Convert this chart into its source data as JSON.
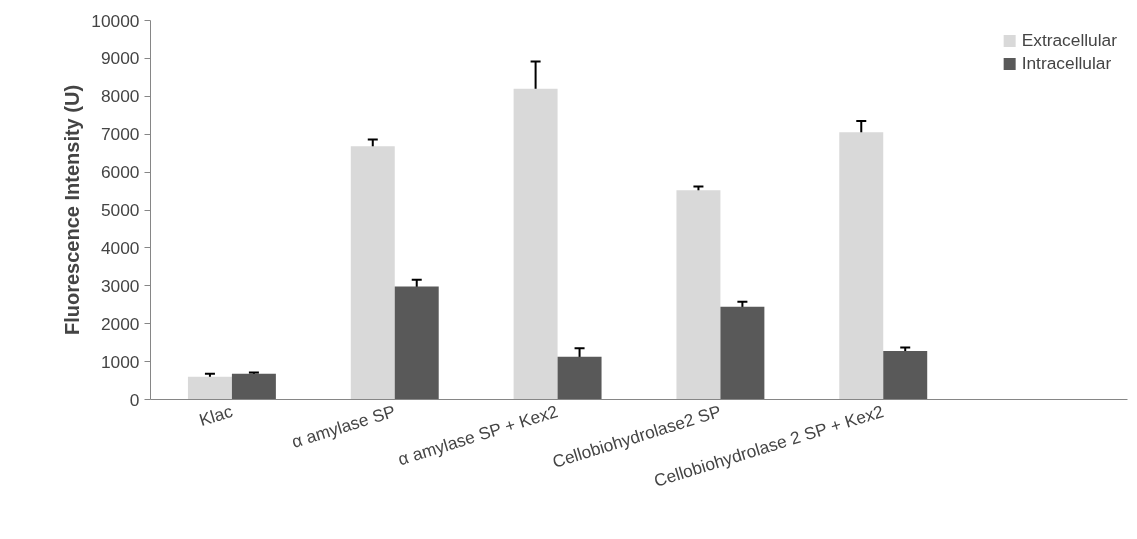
{
  "chart_data": {
    "type": "bar",
    "ylabel": "Fluorescence Intensity (U)",
    "categories": [
      "Klac",
      "α amylase SP",
      "α amylase SP + Kex2",
      "Cellobiohydrolase2 SP",
      "Cellobiohydrolase 2 SP + Kex2",
      null
    ],
    "series": [
      {
        "name": "Extracellular",
        "color": "#d9d9d9",
        "values": [
          600,
          6680,
          8200,
          5520,
          7050,
          null
        ],
        "errors": [
          80,
          180,
          720,
          100,
          300,
          null
        ]
      },
      {
        "name": "Intracellular",
        "color": "#595959",
        "values": [
          680,
          2980,
          1130,
          2450,
          1280,
          null
        ],
        "errors": [
          30,
          180,
          220,
          130,
          90,
          null
        ]
      }
    ],
    "ylim": [
      0,
      10000
    ],
    "yticks": [
      0,
      1000,
      2000,
      3000,
      4000,
      5000,
      6000,
      7000,
      8000,
      9000,
      10000
    ],
    "grid": false,
    "legend": "top right"
  }
}
